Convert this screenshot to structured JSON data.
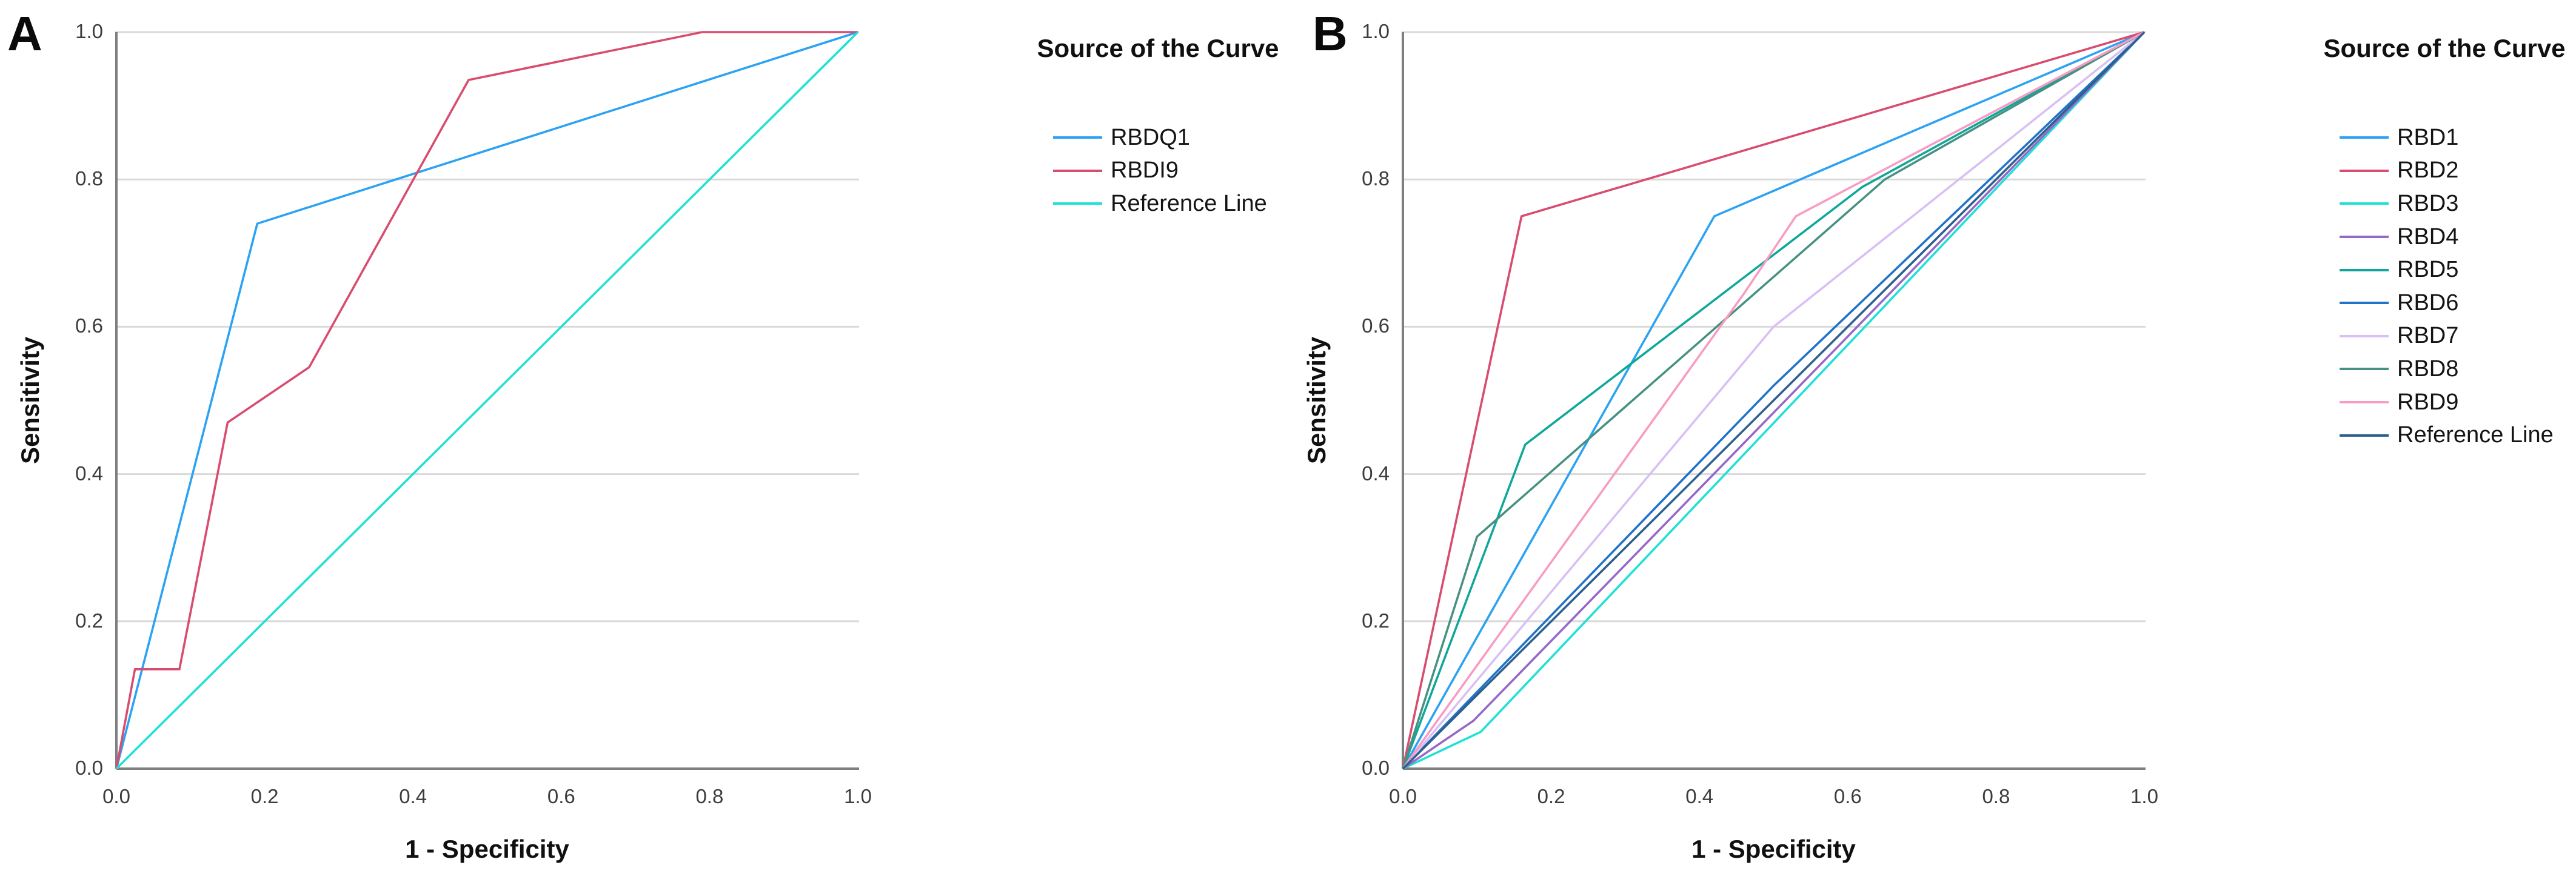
{
  "figure": {
    "background": "#ffffff",
    "grid_color": "#d9d9d9",
    "axis_color": "#7f7f7f",
    "tick_text_color": "#3c3c3c"
  },
  "chart_data": [
    {
      "type": "line",
      "panel_label": "A",
      "title": "",
      "xlabel": "1 - Specificity",
      "ylabel": "Sensitivity",
      "xlim": [
        0.0,
        1.0
      ],
      "ylim": [
        0.0,
        1.0
      ],
      "x_ticks": [
        "0.0",
        "0.2",
        "0.4",
        "0.6",
        "0.8",
        "1.0"
      ],
      "y_ticks": [
        "0.0",
        "0.2",
        "0.4",
        "0.6",
        "0.8",
        "1.0"
      ],
      "grid": "horizontal-only",
      "legend_position": "right",
      "legend_title": "Source of the Curve",
      "series": [
        {
          "name": "RBDQ1",
          "color": "#2ba2f2",
          "points": [
            [
              0,
              0
            ],
            [
              0.19,
              0.74
            ],
            [
              1,
              1
            ]
          ]
        },
        {
          "name": "RBDI9",
          "color": "#d84c6f",
          "points": [
            [
              0,
              0
            ],
            [
              0.025,
              0.135
            ],
            [
              0.085,
              0.135
            ],
            [
              0.15,
              0.47
            ],
            [
              0.26,
              0.545
            ],
            [
              0.475,
              0.935
            ],
            [
              0.79,
              1
            ],
            [
              1,
              1
            ]
          ]
        },
        {
          "name": "Reference Line",
          "color": "#21e0d6",
          "points": [
            [
              0,
              0
            ],
            [
              1,
              1
            ]
          ]
        }
      ]
    },
    {
      "type": "line",
      "panel_label": "B",
      "title": "",
      "xlabel": "1 - Specificity",
      "ylabel": "Sensitivity",
      "xlim": [
        0.0,
        1.0
      ],
      "ylim": [
        0.0,
        1.0
      ],
      "x_ticks": [
        "0.0",
        "0.2",
        "0.4",
        "0.6",
        "0.8",
        "1.0"
      ],
      "y_ticks": [
        "0.0",
        "0.2",
        "0.4",
        "0.6",
        "0.8",
        "1.0"
      ],
      "grid": "horizontal-only",
      "legend_position": "right",
      "legend_title": "Source of the Curve",
      "series": [
        {
          "name": "RBD1",
          "color": "#2ba2f2",
          "points": [
            [
              0,
              0
            ],
            [
              0.42,
              0.75
            ],
            [
              1,
              1
            ]
          ]
        },
        {
          "name": "RBD2",
          "color": "#d84c6f",
          "points": [
            [
              0,
              0
            ],
            [
              0.16,
              0.75
            ],
            [
              1,
              1
            ]
          ]
        },
        {
          "name": "RBD3",
          "color": "#21e0d6",
          "points": [
            [
              0,
              0
            ],
            [
              0.105,
              0.05
            ],
            [
              1,
              1
            ]
          ]
        },
        {
          "name": "RBD4",
          "color": "#9668c8",
          "points": [
            [
              0,
              0
            ],
            [
              0.095,
              0.065
            ],
            [
              1,
              1
            ]
          ]
        },
        {
          "name": "RBD5",
          "color": "#0fa79a",
          "points": [
            [
              0,
              0
            ],
            [
              0.165,
              0.44
            ],
            [
              0.62,
              0.79
            ],
            [
              1,
              1
            ]
          ]
        },
        {
          "name": "RBD6",
          "color": "#2173c9",
          "points": [
            [
              0,
              0
            ],
            [
              0.5,
              0.52
            ],
            [
              1,
              1
            ]
          ]
        },
        {
          "name": "RBD7",
          "color": "#d8c0f4",
          "points": [
            [
              0,
              0
            ],
            [
              0.5,
              0.6
            ],
            [
              1,
              1
            ]
          ]
        },
        {
          "name": "RBD8",
          "color": "#479183",
          "points": [
            [
              0,
              0
            ],
            [
              0.1,
              0.315
            ],
            [
              0.65,
              0.8
            ],
            [
              1,
              1
            ]
          ]
        },
        {
          "name": "RBD9",
          "color": "#f99bc2",
          "points": [
            [
              0,
              0
            ],
            [
              0.46,
              0.645
            ],
            [
              0.53,
              0.75
            ],
            [
              1,
              1
            ]
          ]
        },
        {
          "name": "Reference Line",
          "color": "#2e608f",
          "points": [
            [
              0,
              0
            ],
            [
              1,
              1
            ]
          ]
        }
      ]
    }
  ]
}
